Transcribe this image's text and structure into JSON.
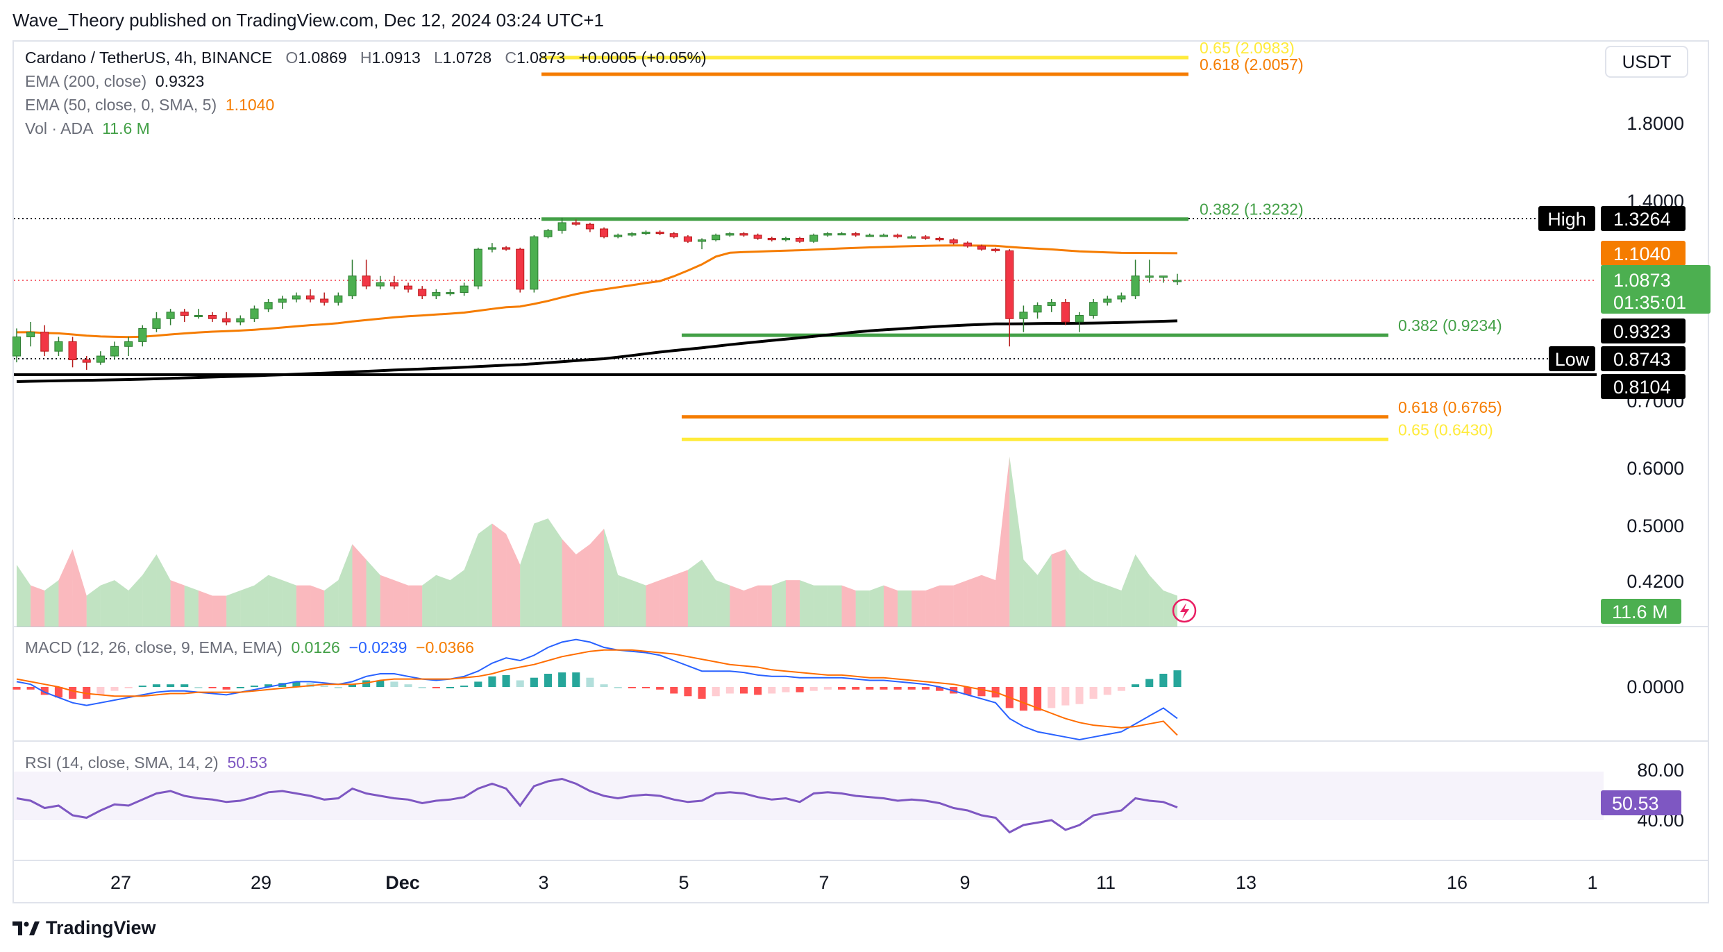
{
  "header": {
    "published": "Wave_Theory published on TradingView.com, Dec 12, 2024 03:24 UTC+1"
  },
  "legend": {
    "symbol": "Cardano / TetherUS, 4h, BINANCE",
    "o_label": "O",
    "o_value": "1.0869",
    "h_label": "H",
    "h_value": "1.0913",
    "l_label": "L",
    "l_value": "1.0728",
    "c_label": "C",
    "c_value": "1.0873",
    "change": "+0.0005 (+0.05%)",
    "ema200_label": "EMA (200, close)",
    "ema200_value": "0.9323",
    "ema50_label": "EMA (50, close, 0, SMA, 5)",
    "ema50_value": "1.1040",
    "vol_label": "Vol · ADA",
    "vol_value": "11.6 M"
  },
  "currency_button": "USDT",
  "macd_legend": {
    "label": "MACD (12, 26, close, 9, EMA, EMA)",
    "v1": "0.0126",
    "v2": "−0.0239",
    "v3": "−0.0366"
  },
  "rsi_legend": {
    "label": "RSI (14, close, SMA, 14, 2)",
    "value": "50.53"
  },
  "brand": "TradingView",
  "colors": {
    "up": "#4caf50",
    "down": "#f23645",
    "ema50": "#f57c00",
    "ema200": "#000000",
    "fib_green": "#43a047",
    "fib_orange": "#f57c00",
    "fib_yellow": "#ffeb3b",
    "macd": "#2962ff",
    "signal": "#ff6d00",
    "rsi": "#7e57c2"
  },
  "chart_data": {
    "type": "candlestick",
    "title": "Cardano / TetherUS, 4h, BINANCE",
    "x_ticks": [
      "27",
      "29",
      "Dec",
      "3",
      "5",
      "7",
      "9",
      "11",
      "13",
      "16",
      "1"
    ],
    "price_axis_ticks": [
      "1.8000",
      "1.4000",
      "0.7000",
      "0.6000",
      "0.5000",
      "0.4200",
      "0.0000"
    ],
    "price_tags": [
      {
        "label": "High",
        "value": "1.3264"
      },
      {
        "value": "1.1040"
      },
      {
        "value": "1.0873",
        "sub": "01:35:01"
      },
      {
        "value": "0.9323"
      },
      {
        "label": "Low",
        "value": "0.8743"
      },
      {
        "value": "0.8104"
      }
    ],
    "volume_tag": "11.6 M",
    "fib_levels": [
      {
        "label": "0.65 (2.0983)",
        "value": 2.0983
      },
      {
        "label": "0.618 (2.0057)",
        "value": 2.0057
      },
      {
        "label": "0.382 (1.3232)",
        "value": 1.3232
      },
      {
        "label": "0.382 (0.9234)",
        "value": 0.9234
      },
      {
        "label": "0.618 (0.6765)",
        "value": 0.6765
      },
      {
        "label": "0.65 (0.6430)",
        "value": 0.643
      }
    ],
    "horizontal_lines": [
      {
        "name": "high",
        "value": 1.3264
      },
      {
        "name": "low",
        "value": 0.8743
      },
      {
        "name": "support",
        "value": 0.8104
      }
    ],
    "candles": [
      [
        0.88,
        0.94,
        0.86,
        0.92
      ],
      [
        0.92,
        0.96,
        0.9,
        0.93
      ],
      [
        0.93,
        0.95,
        0.88,
        0.89
      ],
      [
        0.89,
        0.92,
        0.88,
        0.91
      ],
      [
        0.91,
        0.92,
        0.84,
        0.87
      ],
      [
        0.87,
        0.88,
        0.83,
        0.86
      ],
      [
        0.86,
        0.89,
        0.85,
        0.88
      ],
      [
        0.88,
        0.91,
        0.87,
        0.9
      ],
      [
        0.9,
        0.92,
        0.88,
        0.91
      ],
      [
        0.91,
        0.95,
        0.9,
        0.94
      ],
      [
        0.94,
        0.99,
        0.93,
        0.97
      ],
      [
        0.97,
        1.0,
        0.95,
        0.99
      ],
      [
        0.99,
        1.0,
        0.96,
        0.98
      ],
      [
        0.98,
        1.0,
        0.97,
        0.98
      ],
      [
        0.98,
        0.99,
        0.96,
        0.97
      ],
      [
        0.97,
        0.99,
        0.95,
        0.96
      ],
      [
        0.96,
        0.98,
        0.95,
        0.97
      ],
      [
        0.97,
        1.01,
        0.96,
        1.0
      ],
      [
        1.0,
        1.03,
        0.99,
        1.02
      ],
      [
        1.02,
        1.04,
        1.0,
        1.03
      ],
      [
        1.03,
        1.05,
        1.02,
        1.04
      ],
      [
        1.04,
        1.06,
        1.02,
        1.03
      ],
      [
        1.03,
        1.05,
        1.01,
        1.02
      ],
      [
        1.02,
        1.05,
        1.01,
        1.04
      ],
      [
        1.04,
        1.1,
        1.03,
        1.09
      ],
      [
        1.09,
        1.1,
        1.06,
        1.07
      ],
      [
        1.07,
        1.09,
        1.06,
        1.08
      ],
      [
        1.08,
        1.09,
        1.06,
        1.07
      ],
      [
        1.07,
        1.08,
        1.05,
        1.06
      ],
      [
        1.06,
        1.07,
        1.03,
        1.04
      ],
      [
        1.04,
        1.06,
        1.03,
        1.05
      ],
      [
        1.05,
        1.06,
        1.04,
        1.05
      ],
      [
        1.05,
        1.08,
        1.04,
        1.07
      ],
      [
        1.07,
        1.14,
        1.06,
        1.13
      ],
      [
        1.13,
        1.17,
        1.11,
        1.14
      ],
      [
        1.14,
        1.15,
        1.12,
        1.13
      ],
      [
        1.13,
        1.14,
        1.05,
        1.06
      ],
      [
        1.06,
        1.22,
        1.05,
        1.21
      ],
      [
        1.21,
        1.26,
        1.2,
        1.25
      ],
      [
        1.25,
        1.33,
        1.23,
        1.3
      ],
      [
        1.3,
        1.32,
        1.28,
        1.29
      ],
      [
        1.29,
        1.3,
        1.24,
        1.26
      ],
      [
        1.26,
        1.27,
        1.2,
        1.21
      ],
      [
        1.21,
        1.23,
        1.2,
        1.22
      ],
      [
        1.22,
        1.24,
        1.21,
        1.23
      ],
      [
        1.23,
        1.25,
        1.22,
        1.24
      ],
      [
        1.24,
        1.25,
        1.22,
        1.23
      ],
      [
        1.23,
        1.24,
        1.2,
        1.21
      ],
      [
        1.21,
        1.22,
        1.17,
        1.18
      ],
      [
        1.18,
        1.2,
        1.13,
        1.19
      ],
      [
        1.19,
        1.23,
        1.18,
        1.22
      ],
      [
        1.22,
        1.24,
        1.21,
        1.23
      ],
      [
        1.23,
        1.24,
        1.21,
        1.22
      ],
      [
        1.22,
        1.23,
        1.19,
        1.2
      ],
      [
        1.2,
        1.21,
        1.18,
        1.19
      ],
      [
        1.19,
        1.21,
        1.18,
        1.2
      ],
      [
        1.2,
        1.21,
        1.17,
        1.18
      ],
      [
        1.18,
        1.23,
        1.17,
        1.22
      ],
      [
        1.22,
        1.24,
        1.21,
        1.23
      ],
      [
        1.23,
        1.24,
        1.22,
        1.23
      ],
      [
        1.23,
        1.24,
        1.21,
        1.22
      ],
      [
        1.22,
        1.23,
        1.21,
        1.22
      ],
      [
        1.22,
        1.23,
        1.21,
        1.22
      ],
      [
        1.22,
        1.23,
        1.2,
        1.21
      ],
      [
        1.21,
        1.22,
        1.2,
        1.21
      ],
      [
        1.21,
        1.22,
        1.19,
        1.2
      ],
      [
        1.2,
        1.21,
        1.18,
        1.19
      ],
      [
        1.19,
        1.2,
        1.16,
        1.17
      ],
      [
        1.17,
        1.18,
        1.14,
        1.15
      ],
      [
        1.15,
        1.16,
        1.12,
        1.13
      ],
      [
        1.13,
        1.14,
        1.11,
        1.12
      ],
      [
        1.12,
        1.13,
        0.9,
        0.97
      ],
      [
        0.97,
        1.01,
        0.93,
        0.99
      ],
      [
        0.99,
        1.02,
        0.97,
        1.01
      ],
      [
        1.01,
        1.03,
        0.99,
        1.02
      ],
      [
        1.02,
        1.03,
        0.95,
        0.96
      ],
      [
        0.96,
        0.99,
        0.93,
        0.98
      ],
      [
        0.98,
        1.03,
        0.97,
        1.02
      ],
      [
        1.02,
        1.04,
        1.01,
        1.03
      ],
      [
        1.03,
        1.05,
        1.02,
        1.04
      ],
      [
        1.04,
        1.1,
        1.03,
        1.09
      ],
      [
        1.09,
        1.1,
        1.08,
        1.09
      ],
      [
        1.09,
        1.09,
        1.08,
        1.09
      ],
      [
        1.0869,
        1.0913,
        1.0728,
        1.0873
      ]
    ],
    "volume": [
      1.2,
      0.8,
      0.7,
      0.9,
      1.5,
      0.6,
      0.8,
      0.9,
      0.7,
      1.0,
      1.4,
      0.9,
      0.8,
      0.7,
      0.6,
      0.6,
      0.7,
      0.8,
      1.0,
      0.9,
      0.8,
      0.8,
      0.7,
      0.9,
      1.6,
      1.3,
      1.0,
      0.9,
      0.8,
      0.8,
      1.0,
      0.9,
      1.1,
      1.8,
      2.0,
      1.8,
      1.2,
      2.0,
      2.1,
      1.7,
      1.4,
      1.6,
      1.9,
      1.0,
      0.9,
      0.8,
      0.9,
      1.0,
      1.1,
      1.3,
      0.9,
      0.8,
      0.7,
      0.8,
      0.8,
      0.9,
      0.9,
      0.8,
      0.8,
      0.8,
      0.7,
      0.7,
      0.8,
      0.7,
      0.7,
      0.7,
      0.8,
      0.8,
      0.9,
      1.0,
      0.9,
      3.3,
      1.3,
      1.0,
      1.4,
      1.5,
      1.1,
      0.9,
      0.8,
      0.7,
      1.4,
      1.0,
      0.7,
      0.6
    ],
    "macd_line": [
      0.004,
      0.002,
      -0.004,
      -0.008,
      -0.012,
      -0.014,
      -0.012,
      -0.01,
      -0.008,
      -0.006,
      -0.004,
      -0.003,
      -0.003,
      -0.004,
      -0.005,
      -0.006,
      -0.004,
      -0.002,
      0.0,
      0.002,
      0.004,
      0.004,
      0.003,
      0.002,
      0.004,
      0.008,
      0.01,
      0.01,
      0.008,
      0.006,
      0.005,
      0.006,
      0.008,
      0.012,
      0.018,
      0.022,
      0.02,
      0.024,
      0.03,
      0.034,
      0.036,
      0.034,
      0.03,
      0.028,
      0.027,
      0.026,
      0.024,
      0.02,
      0.016,
      0.012,
      0.012,
      0.012,
      0.011,
      0.009,
      0.008,
      0.008,
      0.007,
      0.007,
      0.007,
      0.007,
      0.006,
      0.005,
      0.005,
      0.004,
      0.003,
      0.002,
      0.0,
      -0.003,
      -0.006,
      -0.009,
      -0.012,
      -0.024,
      -0.03,
      -0.034,
      -0.036,
      -0.038,
      -0.04,
      -0.038,
      -0.036,
      -0.034,
      -0.028,
      -0.022,
      -0.016,
      -0.0239
    ],
    "signal_line": [
      0.006,
      0.004,
      0.002,
      0.0,
      -0.003,
      -0.005,
      -0.006,
      -0.007,
      -0.007,
      -0.007,
      -0.006,
      -0.005,
      -0.005,
      -0.004,
      -0.004,
      -0.004,
      -0.004,
      -0.003,
      -0.002,
      -0.001,
      0.0,
      0.001,
      0.002,
      0.002,
      0.002,
      0.003,
      0.005,
      0.006,
      0.006,
      0.006,
      0.006,
      0.006,
      0.007,
      0.008,
      0.01,
      0.013,
      0.015,
      0.017,
      0.02,
      0.023,
      0.025,
      0.027,
      0.028,
      0.028,
      0.028,
      0.027,
      0.026,
      0.025,
      0.023,
      0.021,
      0.019,
      0.017,
      0.016,
      0.015,
      0.013,
      0.012,
      0.011,
      0.01,
      0.009,
      0.009,
      0.008,
      0.007,
      0.007,
      0.006,
      0.005,
      0.004,
      0.003,
      0.002,
      0.0,
      -0.002,
      -0.004,
      -0.008,
      -0.012,
      -0.016,
      -0.02,
      -0.024,
      -0.027,
      -0.029,
      -0.03,
      -0.031,
      -0.03,
      -0.028,
      -0.026,
      -0.0366
    ],
    "histogram": [
      -0.002,
      -0.002,
      -0.006,
      -0.008,
      -0.009,
      -0.009,
      -0.006,
      -0.003,
      -0.001,
      0.001,
      0.002,
      0.002,
      0.002,
      0.0,
      -0.001,
      -0.002,
      0.0,
      0.001,
      0.002,
      0.003,
      0.004,
      0.003,
      0.001,
      0.0,
      0.002,
      0.005,
      0.005,
      0.004,
      0.002,
      0.0,
      -0.001,
      0.0,
      0.001,
      0.004,
      0.008,
      0.009,
      0.005,
      0.007,
      0.01,
      0.011,
      0.011,
      0.007,
      0.002,
      0.0,
      -0.001,
      -0.001,
      -0.002,
      -0.005,
      -0.007,
      -0.009,
      -0.007,
      -0.005,
      -0.005,
      -0.006,
      -0.005,
      -0.004,
      -0.004,
      -0.003,
      -0.002,
      -0.002,
      -0.002,
      -0.002,
      -0.002,
      -0.002,
      -0.002,
      -0.002,
      -0.003,
      -0.005,
      -0.006,
      -0.007,
      -0.008,
      -0.016,
      -0.018,
      -0.018,
      -0.016,
      -0.014,
      -0.013,
      -0.009,
      -0.006,
      -0.003,
      0.002,
      0.006,
      0.01,
      0.0126
    ],
    "rsi": [
      58,
      56,
      50,
      52,
      44,
      42,
      48,
      53,
      52,
      57,
      62,
      64,
      60,
      58,
      57,
      55,
      56,
      59,
      63,
      64,
      62,
      60,
      57,
      58,
      66,
      62,
      60,
      58,
      57,
      54,
      56,
      57,
      59,
      66,
      70,
      66,
      52,
      68,
      72,
      74,
      70,
      64,
      60,
      58,
      60,
      61,
      60,
      57,
      55,
      56,
      62,
      63,
      62,
      59,
      57,
      58,
      55,
      62,
      63,
      62,
      60,
      59,
      58,
      56,
      57,
      56,
      54,
      50,
      48,
      44,
      42,
      30,
      36,
      38,
      40,
      32,
      36,
      44,
      46,
      48,
      58,
      56,
      55,
      50.53
    ],
    "rsi_axis_ticks": [
      "80.00",
      "40.00"
    ],
    "rsi_tag": "50.53"
  }
}
